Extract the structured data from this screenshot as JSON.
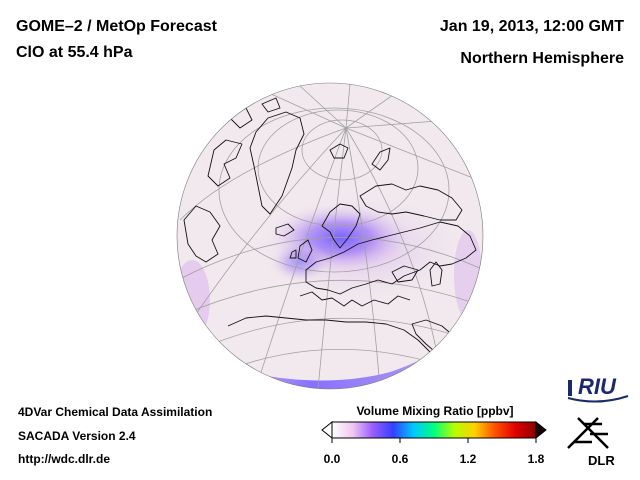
{
  "header": {
    "title_line1": "GOME–2 / MetOp Forecast",
    "title_line2": "ClO at 55.4 hPa",
    "date": "Jan 19, 2013, 12:00 GMT",
    "region": "Northern Hemisphere"
  },
  "footer": {
    "line1": "4DVar Chemical Data Assimilation",
    "line2": "SACADA Version 2.4",
    "line3": "http://wdc.dlr.de"
  },
  "colorbar": {
    "title": "Volume Mixing Ratio [ppbv]",
    "ticks": [
      "0.0",
      "0.6",
      "1.2",
      "1.8"
    ],
    "colors": [
      "#ffffff",
      "#f0c8f0",
      "#9a5cff",
      "#3340ff",
      "#00c8ff",
      "#00ff80",
      "#b4ff00",
      "#ffd000",
      "#ff5000",
      "#e00000",
      "#8a0000"
    ]
  },
  "logos": {
    "riu": "RIU",
    "dlr": "DLR"
  },
  "map": {
    "projection": "orthographic",
    "colors": {
      "globe_fill": "#f2e9ee",
      "coast": "#111111",
      "graticule": "#a0a0a0",
      "clo_high": "#8a6cff",
      "clo_mid": "#c9a8f5",
      "clo_low": "#e8cdea"
    }
  }
}
